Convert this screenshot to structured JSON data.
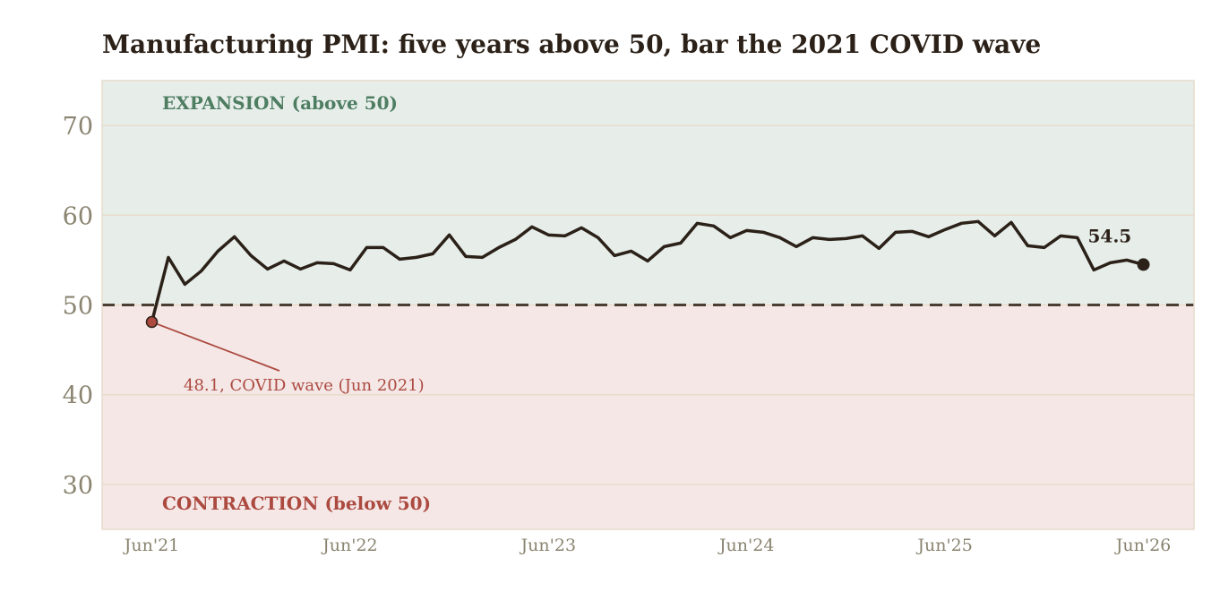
{
  "chart_data": {
    "type": "line",
    "title": "Manufacturing PMI: five years above 50, bar the 2021 COVID wave",
    "xlabel": "",
    "ylabel": "",
    "ylim": [
      25,
      75
    ],
    "yticks": [
      30,
      40,
      50,
      60,
      70
    ],
    "xticks": [
      "Jun'21",
      "Jun'22",
      "Jun'23",
      "Jun'24",
      "Jun'25",
      "Jun'26"
    ],
    "grid": "horizontal",
    "threshold": 50,
    "zones": {
      "expansion": {
        "label": "EXPANSION  (above 50)",
        "color": "#e7eeea",
        "text_color": "#4e7d62"
      },
      "contraction": {
        "label": "CONTRACTION  (below 50)",
        "color": "#f4e7e6",
        "text_color": "#ac4a40"
      }
    },
    "series": [
      {
        "color": "#2b2118",
        "start": "2021-06",
        "values": [
          48.1,
          55.3,
          52.3,
          53.8,
          56.0,
          57.6,
          55.5,
          54.0,
          54.9,
          54.0,
          54.7,
          54.6,
          53.9,
          56.4,
          56.4,
          55.1,
          55.3,
          55.7,
          57.8,
          55.4,
          55.3,
          56.4,
          57.3,
          58.7,
          57.8,
          57.7,
          58.6,
          57.5,
          55.5,
          56.0,
          54.9,
          56.5,
          56.9,
          59.1,
          58.8,
          57.5,
          58.3,
          58.1,
          57.5,
          56.5,
          57.5,
          57.3,
          57.4,
          57.7,
          56.3,
          58.1,
          58.2,
          57.6,
          58.4,
          59.1,
          59.3,
          57.7,
          59.2,
          56.6,
          56.4,
          57.7,
          57.5,
          53.9,
          54.7,
          55.0,
          54.5
        ]
      }
    ],
    "annotations": [
      {
        "x": "2021-06",
        "y": 48.1,
        "text": "48.1, COVID wave (Jun 2021)",
        "color": "#ac4a40"
      }
    ],
    "end_label": {
      "x": "2026-06",
      "y": 54.5,
      "text": "54.5"
    },
    "colors": {
      "line": "#2b2118",
      "threshold": "#4a3e32",
      "grid": "#e7dccb",
      "tick_text": "#8a8470",
      "title": "#2b2118"
    }
  }
}
